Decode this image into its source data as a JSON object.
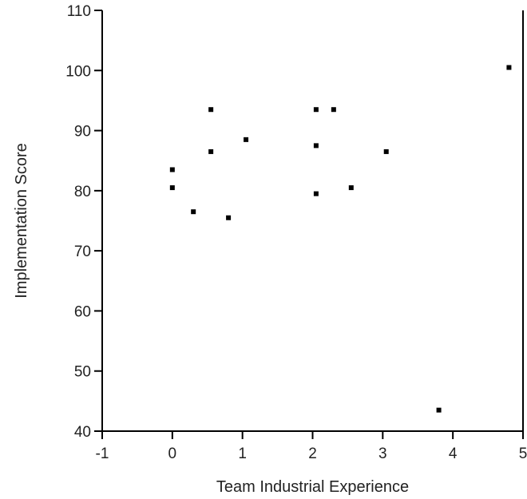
{
  "chart_data": {
    "type": "scatter",
    "title": "",
    "xlabel": "Team Industrial Experience",
    "ylabel": "Implementation Score",
    "xlim": [
      -1,
      5
    ],
    "ylim": [
      40,
      110
    ],
    "x_ticks": [
      -1,
      0,
      1,
      2,
      3,
      4,
      5
    ],
    "y_ticks": [
      40,
      50,
      60,
      70,
      80,
      90,
      100,
      110
    ],
    "x_tick_labels": [
      "-1",
      "0",
      "1",
      "2",
      "3",
      "4",
      "5"
    ],
    "y_tick_labels": [
      "40",
      "50",
      "60",
      "70",
      "80",
      "90",
      "100",
      "110"
    ],
    "grid": false,
    "legend": "none",
    "marker_color": "#000000",
    "points": [
      {
        "x": 0.0,
        "y": 83.5
      },
      {
        "x": 0.0,
        "y": 80.5
      },
      {
        "x": 0.3,
        "y": 76.5
      },
      {
        "x": 0.55,
        "y": 93.5
      },
      {
        "x": 0.55,
        "y": 86.5
      },
      {
        "x": 0.8,
        "y": 75.5
      },
      {
        "x": 1.05,
        "y": 88.5
      },
      {
        "x": 2.05,
        "y": 93.5
      },
      {
        "x": 2.3,
        "y": 93.5
      },
      {
        "x": 2.05,
        "y": 87.5
      },
      {
        "x": 2.05,
        "y": 79.5
      },
      {
        "x": 2.55,
        "y": 80.5
      },
      {
        "x": 3.05,
        "y": 86.5
      },
      {
        "x": 3.8,
        "y": 43.5
      },
      {
        "x": 4.8,
        "y": 100.5
      }
    ]
  }
}
